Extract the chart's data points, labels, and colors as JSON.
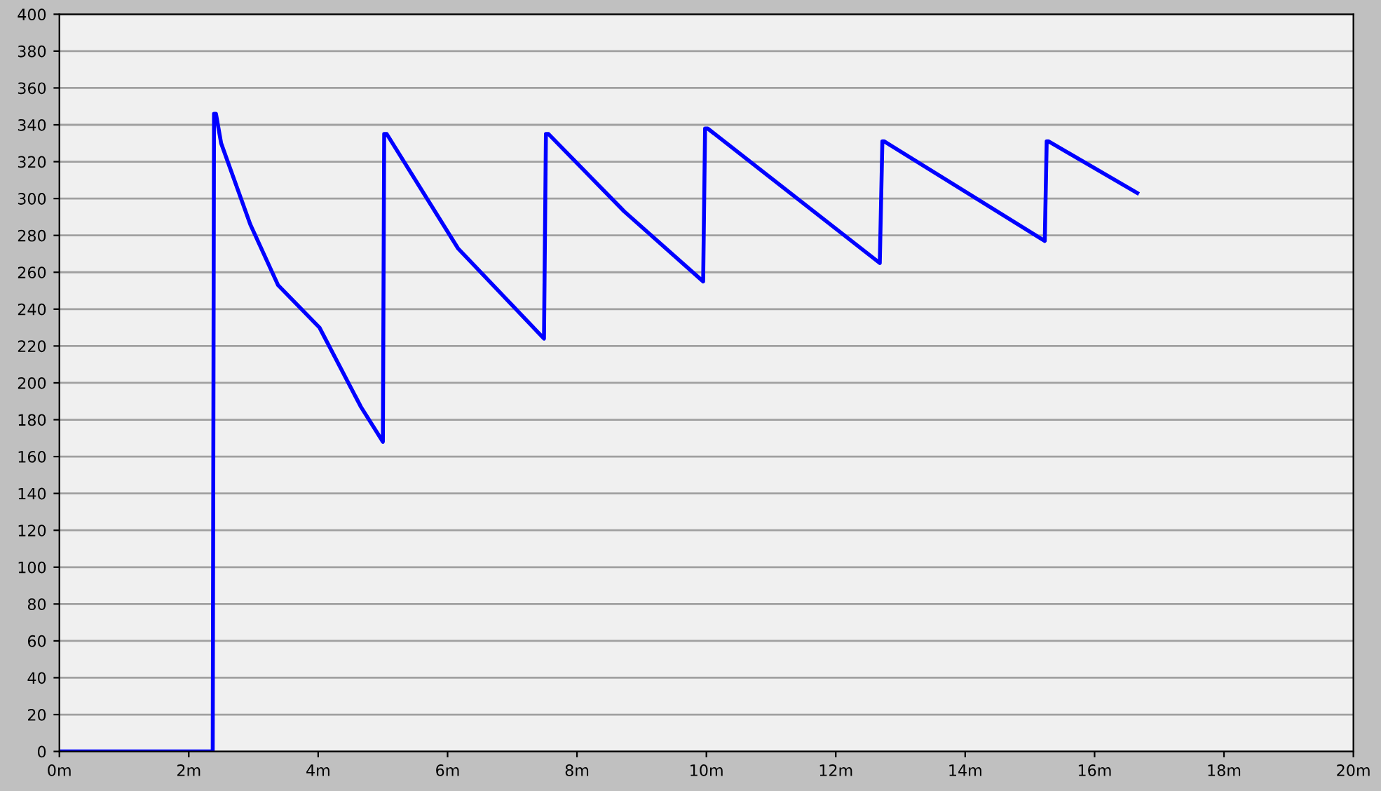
{
  "chart_data": {
    "type": "line",
    "series": [
      {
        "color": "#0000ff",
        "x": [
          0,
          2.37,
          2.39,
          2.42,
          2.5,
          2.95,
          3.38,
          4.02,
          4.66,
          5.0,
          5.02,
          5.06,
          6.16,
          7.49,
          7.52,
          7.56,
          8.73,
          9.95,
          9.98,
          10.02,
          12.68,
          12.72,
          12.75,
          15.23,
          15.26,
          15.29,
          16.66
        ],
        "values": [
          0,
          0,
          346,
          346,
          330,
          286,
          253,
          230,
          187,
          168,
          335,
          335,
          273,
          224,
          335,
          335,
          293,
          255,
          338,
          338,
          265,
          331,
          331,
          277,
          331,
          331,
          303
        ]
      }
    ],
    "xlim": [
      0,
      20
    ],
    "xticks": [
      {
        "value": 0,
        "label": "0m"
      },
      {
        "value": 2,
        "label": "2m"
      },
      {
        "value": 4,
        "label": "4m"
      },
      {
        "value": 6,
        "label": "6m"
      },
      {
        "value": 8,
        "label": "8m"
      },
      {
        "value": 10,
        "label": "10m"
      },
      {
        "value": 12,
        "label": "12m"
      },
      {
        "value": 14,
        "label": "14m"
      },
      {
        "value": 16,
        "label": "16m"
      },
      {
        "value": 18,
        "label": "18m"
      },
      {
        "value": 20,
        "label": "20m"
      }
    ],
    "ylim": [
      0,
      400
    ],
    "yticks": [
      0,
      20,
      40,
      60,
      80,
      100,
      120,
      140,
      160,
      180,
      200,
      220,
      240,
      260,
      280,
      300,
      320,
      340,
      360,
      380,
      400
    ],
    "grid": "y",
    "marker": "none",
    "line_style": "solid"
  }
}
